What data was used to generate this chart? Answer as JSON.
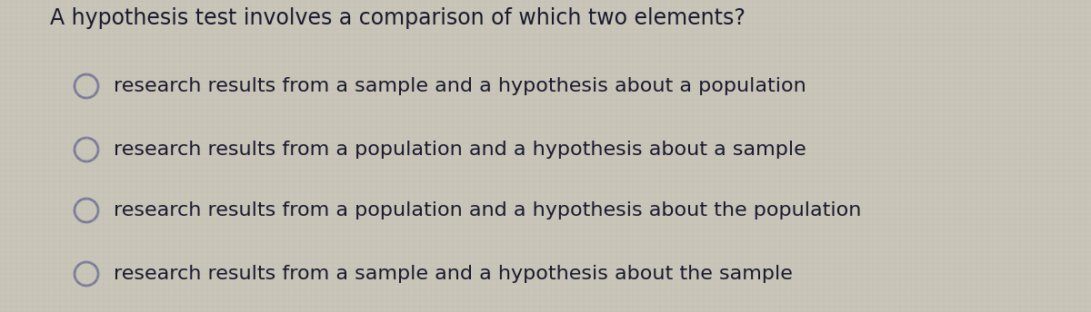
{
  "background_color": "#c9c5b9",
  "question": "A hypothesis test involves a comparison of which two elements?",
  "options": [
    "research results from a sample and a hypothesis about a population",
    "research results from a population and a hypothesis about a sample",
    "research results from a population and a hypothesis about the population",
    "research results from a sample and a hypothesis about the sample"
  ],
  "question_fontsize": 17,
  "option_fontsize": 16,
  "text_color": "#1a1a2e",
  "circle_color": "#7a7a9a",
  "circle_linewidth": 2.0,
  "fig_width": 12.0,
  "fig_height": 3.44,
  "dpi": 100
}
